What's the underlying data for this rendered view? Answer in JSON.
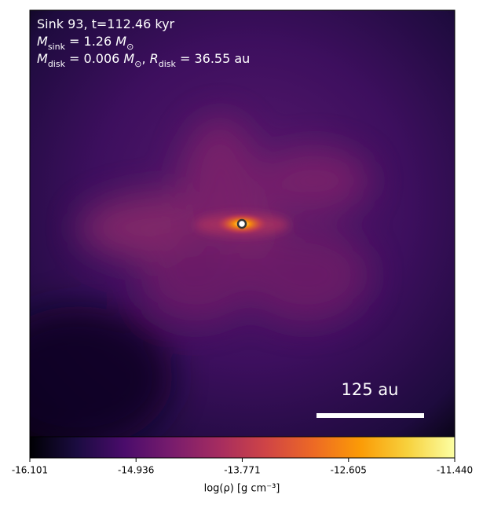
{
  "chart_data": {
    "type": "image",
    "annotations": [
      [
        {
          "text": "Sink 93, t=112.46 kyr"
        }
      ],
      [
        {
          "text": "M",
          "italic": true
        },
        {
          "text": "sink",
          "sub": true
        },
        {
          "text": " = 1.26 "
        },
        {
          "text": "M",
          "italic": true
        },
        {
          "text": "⊙",
          "sub": true
        }
      ],
      [
        {
          "text": "M",
          "italic": true
        },
        {
          "text": "disk",
          "sub": true
        },
        {
          "text": " = 0.006 "
        },
        {
          "text": "M",
          "italic": true
        },
        {
          "text": "⊙",
          "sub": true
        },
        {
          "text": ", "
        },
        {
          "text": "R",
          "italic": true
        },
        {
          "text": "disk",
          "sub": true
        },
        {
          "text": " = 36.55 au"
        }
      ]
    ],
    "scale_bar": {
      "label": "125 au"
    },
    "colorbar": {
      "label": "log(ρ) [g cm⁻³]",
      "lim": [
        -16.101,
        -11.44
      ],
      "ticks": [
        -16.101,
        -14.936,
        -13.771,
        -12.605,
        {
          "value": -11.44,
          "label": "-11.440"
        }
      ],
      "colormap": [
        "#000004",
        "#1b0c41",
        "#4a0c6b",
        "#781c6d",
        "#a52c60",
        "#cf4446",
        "#ed6925",
        "#fb9b06",
        "#f7d13d",
        "#fcffa4"
      ]
    }
  }
}
